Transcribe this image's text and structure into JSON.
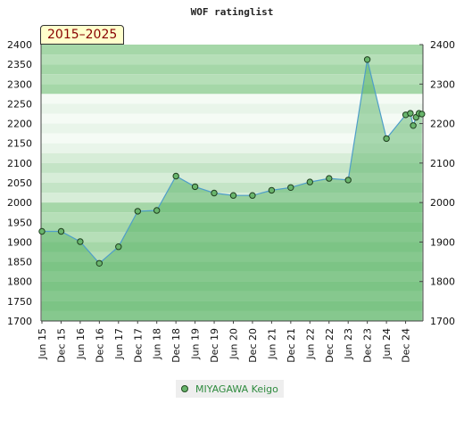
{
  "chart_data": {
    "type": "area",
    "title": "WOF ratinglist",
    "period_label": "2015–2025",
    "xlabel": "",
    "ylabel": "",
    "ylim": [
      1700,
      2400
    ],
    "yticks": [
      1700,
      1750,
      1800,
      1850,
      1900,
      1950,
      2000,
      2050,
      2100,
      2150,
      2200,
      2250,
      2300,
      2350,
      2400
    ],
    "right_yticks": [
      1700,
      1800,
      1900,
      2000,
      2100,
      2200,
      2300,
      2400
    ],
    "xticks": [
      "Jun 15",
      "Dec 15",
      "Jun 16",
      "Dec 16",
      "Jun 17",
      "Dec 17",
      "Jun 18",
      "Dec 18",
      "Jun 19",
      "Dec 19",
      "Jun 20",
      "Dec 20",
      "Jun 21",
      "Dec 21",
      "Jun 22",
      "Dec 22",
      "Jun 23",
      "Dec 23",
      "Jun 24",
      "Dec 24"
    ],
    "grid": true,
    "legend_position": "bottom",
    "series": [
      {
        "name": "MIYAGAWA Keigo",
        "color": "#69b56c",
        "points": [
          {
            "x": 0.0,
            "y": 1927
          },
          {
            "x": 1.0,
            "y": 1927
          },
          {
            "x": 2.0,
            "y": 1901
          },
          {
            "x": 3.0,
            "y": 1846
          },
          {
            "x": 4.0,
            "y": 1888
          },
          {
            "x": 5.0,
            "y": 1978
          },
          {
            "x": 6.0,
            "y": 1980
          },
          {
            "x": 7.0,
            "y": 2067
          },
          {
            "x": 8.0,
            "y": 2040
          },
          {
            "x": 9.0,
            "y": 2024
          },
          {
            "x": 10.0,
            "y": 2018
          },
          {
            "x": 11.0,
            "y": 2018
          },
          {
            "x": 12.0,
            "y": 2031
          },
          {
            "x": 13.0,
            "y": 2038
          },
          {
            "x": 14.0,
            "y": 2052
          },
          {
            "x": 15.0,
            "y": 2061
          },
          {
            "x": 16.0,
            "y": 2057
          },
          {
            "x": 17.0,
            "y": 2362
          },
          {
            "x": 18.0,
            "y": 2162
          },
          {
            "x": 19.0,
            "y": 2222
          },
          {
            "x": 19.25,
            "y": 2226
          },
          {
            "x": 19.4,
            "y": 2195
          },
          {
            "x": 19.55,
            "y": 2216
          },
          {
            "x": 19.7,
            "y": 2226
          },
          {
            "x": 19.85,
            "y": 2224
          }
        ]
      }
    ]
  }
}
